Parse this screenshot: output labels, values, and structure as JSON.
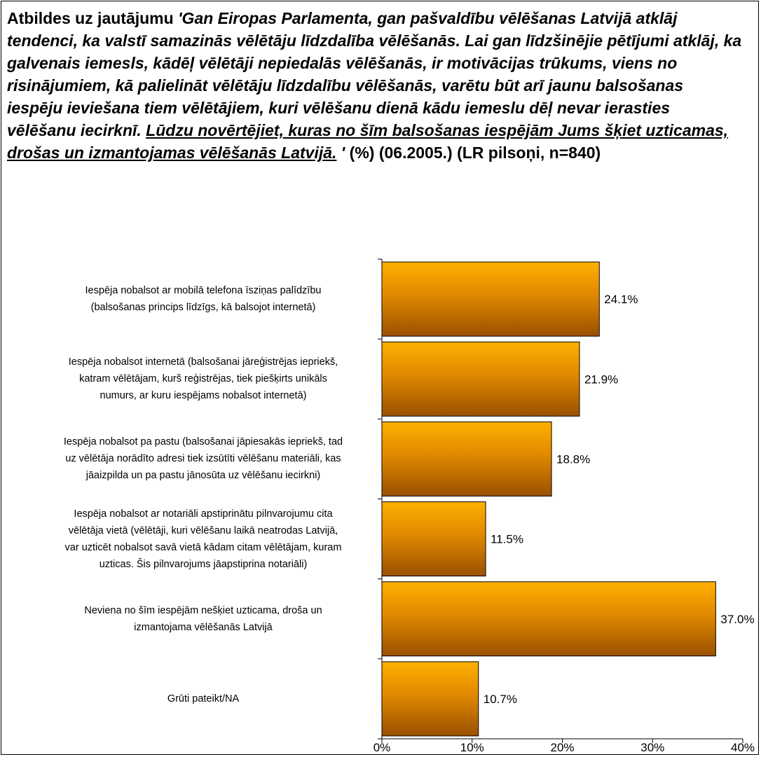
{
  "title": {
    "lead": "Atbildes uz jautājumu ",
    "question": "'Gan Eiropas Parlamenta, gan pašvaldību vēlēšanas Latvijā atklāj tendenci, ka valstī samazinās vēlētāju līdzdalība vēlēšanās. Lai gan līdzšinējie pētījumi atklāj, ka galvenais iemesls, kādēļ vēlētāji nepiedalās vēlēšanās, ir motivācijas trūkums, viens no risinājumiem, kā palielināt vēlētāju līdzdalību vēlēšanās, varētu būt arī jaunu  balsošanas iespēju ieviešana tiem vēlētājiem, kuri vēlēšanu dienā kādu iemeslu dēļ nevar ierasties vēlēšanu iecirknī. ",
    "question_underlined": "Lūdzu novērtējiet, kuras no šīm balsošanas iespējām Jums šķiet uzticamas, drošas un izmantojamas vēlēšanās Latvijā.",
    "question_end": " '",
    "tail": " (%) (06.2005.) (LR pilsoņi, n=840)"
  },
  "chart_data": {
    "type": "bar",
    "orientation": "horizontal",
    "categories": [
      [
        "Iespēja nobalsot ar mobilā telefona īsziņas palīdzību",
        "(balsošanas princips līdzīgs, kā balsojot internetā)"
      ],
      [
        "Iespēja nobalsot internetā (balsošanai jāreģistrējas iepriekš,",
        "katram vēlētājam, kurš reģistrējas, tiek piešķirts unikāls",
        "numurs, ar kuru iespējams nobalsot internetā)"
      ],
      [
        "Iespēja nobalsot pa pastu (balsošanai jāpiesakās iepriekš, tad",
        "uz vēlētāja norādīto adresi tiek izsūtīti vēlēšanu materiāli, kas",
        "jāaizpilda un pa pastu jānosūta uz vēlēšanu iecirkni)"
      ],
      [
        "Iespēja nobalsot ar notariāli apstiprinātu pilnvarojumu cita",
        "vēlētāja vietā (vēlētāji, kuri vēlēšanu laikā neatrodas Latvijā,",
        "var uzticēt nobalsot savā vietā kādam citam vēlētājam, kuram",
        "uzticas. Šis pilnvarojums jāapstiprina notariāli)"
      ],
      [
        "Neviena no šīm iespējām nešķiet uzticama, droša un",
        "izmantojama vēlēšanās Latvijā"
      ],
      [
        "Grūti pateikt/NA"
      ]
    ],
    "values": [
      24.1,
      21.9,
      18.8,
      11.5,
      37.0,
      10.7
    ],
    "value_labels": [
      "24.1%",
      "21.9%",
      "18.8%",
      "11.5%",
      "37.0%",
      "10.7%"
    ],
    "xlim": [
      0,
      40
    ],
    "xticks": [
      0,
      10,
      20,
      30,
      40
    ],
    "xtick_labels": [
      "0%",
      "10%",
      "20%",
      "30%",
      "40%"
    ],
    "grid": false,
    "colors": {
      "bar_light": "#ffb000",
      "bar_mid": "#e08800",
      "bar_dark": "#9a5000",
      "bar_edge": "#000000"
    }
  }
}
